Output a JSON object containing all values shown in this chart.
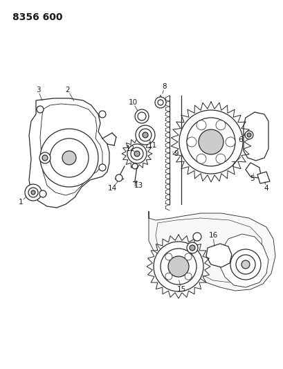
{
  "title": "8356 600",
  "bg_color": "#ffffff",
  "line_color": "#2a2a2a",
  "label_color": "#1a1a1a",
  "title_fontsize": 10,
  "label_fontsize": 7.5,
  "figsize": [
    4.1,
    5.33
  ],
  "dpi": 100
}
